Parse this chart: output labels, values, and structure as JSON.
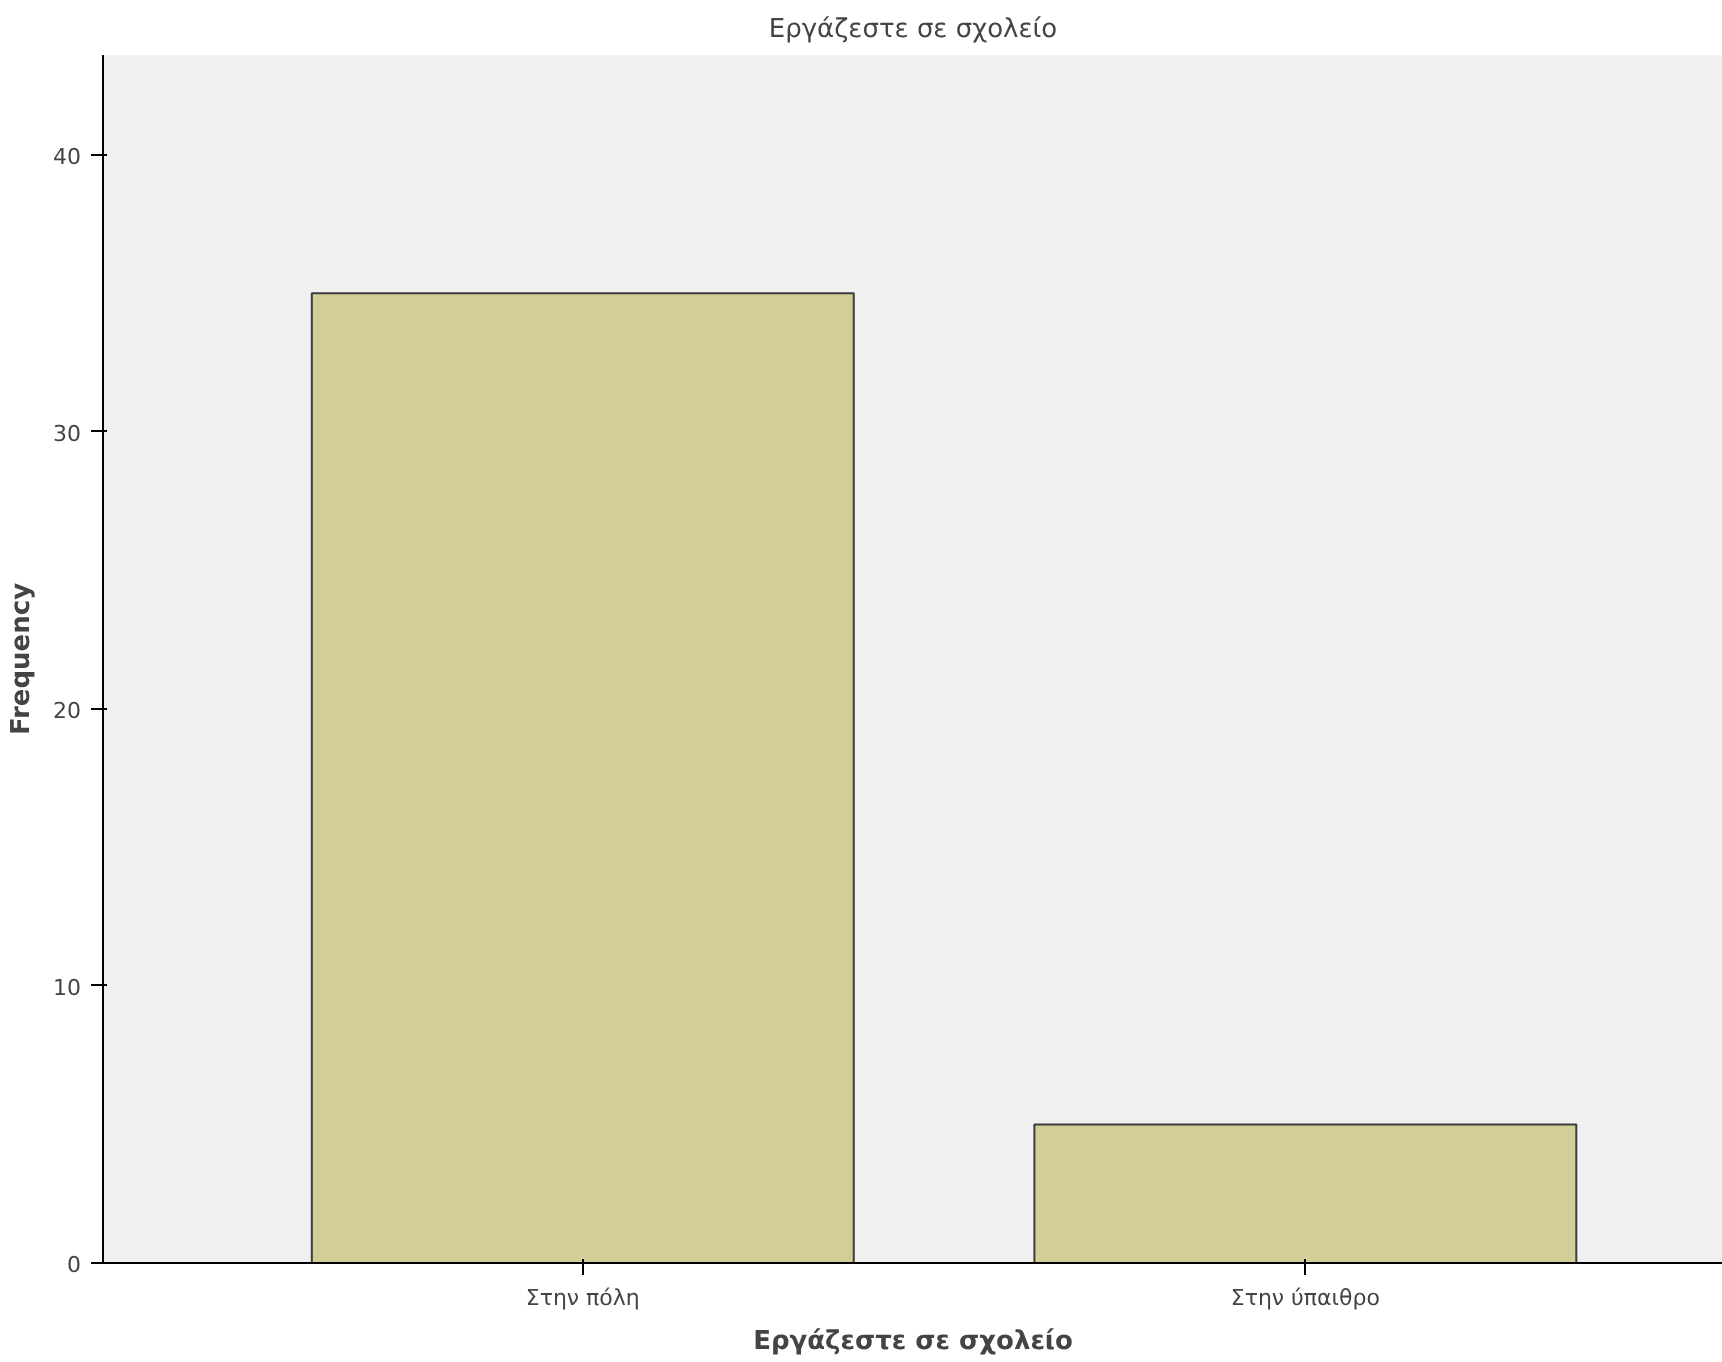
{
  "chart_data": {
    "type": "bar",
    "title": "Εργάζεστε σε σχολείο",
    "xlabel": "Εργάζεστε σε σχολείο",
    "ylabel": "Frequency",
    "categories": [
      "Στην πόλη",
      "Στην ύπαιθρο"
    ],
    "values": [
      35,
      5
    ],
    "color": "#d3ce97",
    "ylim": [
      0,
      43.6
    ],
    "yticks": [
      0,
      10,
      20,
      30,
      40
    ],
    "grid": false
  }
}
